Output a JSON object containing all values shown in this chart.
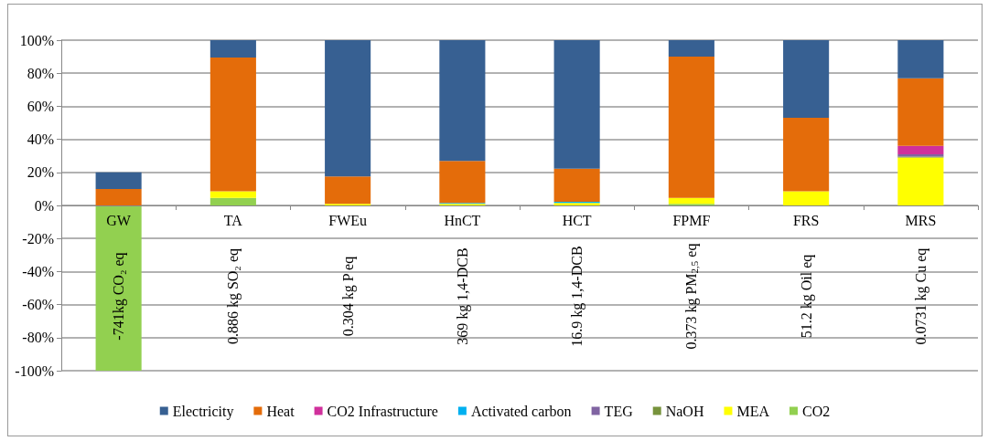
{
  "chart_data": {
    "type": "bar",
    "stacked": true,
    "categories": [
      "GW",
      "TA",
      "FWEu",
      "HnCT",
      "HCT",
      "FPMF",
      "FRS",
      "MRS"
    ],
    "series": [
      {
        "name": "CO2",
        "color": "#92d050",
        "values": [
          -100,
          4.5,
          0,
          0,
          0,
          1,
          0,
          0
        ]
      },
      {
        "name": "MEA",
        "color": "#ffff00",
        "values": [
          0,
          4,
          1,
          1,
          1.5,
          3.5,
          8.5,
          29
        ]
      },
      {
        "name": "NaOH",
        "color": "#77933c",
        "values": [
          0,
          0,
          0,
          0,
          0,
          0,
          0,
          0.5
        ]
      },
      {
        "name": "TEG",
        "color": "#8064a2",
        "values": [
          0,
          0,
          0,
          0,
          0,
          0,
          0,
          1.5
        ]
      },
      {
        "name": "Activated carbon",
        "color": "#00b0f0",
        "values": [
          0,
          0,
          0,
          0.5,
          0.7,
          0,
          0,
          0
        ]
      },
      {
        "name": "CO2 Infrastructure",
        "color": "#d0309c",
        "values": [
          0,
          0,
          0,
          0,
          0,
          0,
          0,
          5
        ]
      },
      {
        "name": "Heat",
        "color": "#e46c0a",
        "values": [
          10,
          81,
          16.5,
          25.5,
          20,
          85.5,
          44.5,
          41
        ]
      },
      {
        "name": "Electricity",
        "color": "#376092",
        "values": [
          10,
          10.5,
          82.5,
          73,
          78,
          10,
          47,
          23
        ]
      }
    ],
    "ylim": [
      -100,
      100
    ],
    "yticks": [
      {
        "value": -100,
        "label": "-100%"
      },
      {
        "value": -80,
        "label": "-80%"
      },
      {
        "value": -60,
        "label": "-60%"
      },
      {
        "value": -40,
        "label": "-40%"
      },
      {
        "value": -20,
        "label": "-20%"
      },
      {
        "value": 0,
        "label": "0%"
      },
      {
        "value": 20,
        "label": "20%"
      },
      {
        "value": 40,
        "label": "40%"
      },
      {
        "value": 60,
        "label": "60%"
      },
      {
        "value": 80,
        "label": "80%"
      },
      {
        "value": 100,
        "label": "100%"
      }
    ],
    "annotations": [
      "-741kg CO₂ eq",
      "0.886 kg SO₂ eq",
      "0.304 kg P eq",
      "369 kg 1,4-DCB",
      "16.9 kg 1,4-DCB",
      "0.373 kg PM$_{2,5}$ eq",
      "51.2 kg Oil eq",
      "0.0731 kg Cu eq"
    ],
    "grid": "y",
    "legend": "bottom"
  }
}
